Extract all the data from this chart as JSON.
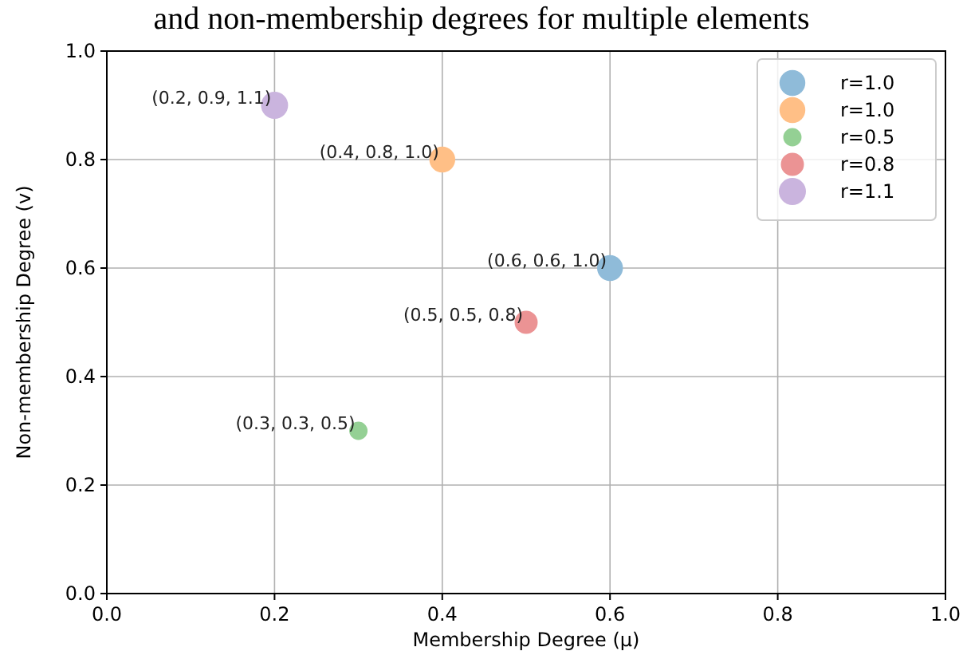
{
  "chart_data": {
    "type": "bubble",
    "title": "and non-membership degrees for multiple elements",
    "xlabel": "Membership Degree (μ)",
    "ylabel": "Non-membership Degree (v)",
    "xlim": [
      0,
      1
    ],
    "ylim": [
      0,
      1
    ],
    "xticks": [
      {
        "value": 0,
        "label": "0.0"
      },
      0.2,
      0.4,
      0.6,
      0.8,
      {
        "value": 1,
        "label": "1.0"
      }
    ],
    "yticks": [
      {
        "value": 0,
        "label": "0.0"
      },
      0.2,
      0.4,
      0.6,
      0.8,
      {
        "value": 1,
        "label": "1.0"
      }
    ],
    "grid": true,
    "legend": "top right",
    "series": [
      {
        "name": "r=1.0",
        "color": "#8fbbd9",
        "x": [
          0.6
        ],
        "values": [
          0.6
        ],
        "sizes": [
          0.909
        ]
      },
      {
        "name": "r=1.0",
        "color": "#ffbf86",
        "x": [
          0.4
        ],
        "values": [
          0.8
        ],
        "sizes": [
          0.909
        ]
      },
      {
        "name": "r=0.5",
        "color": "#94d094",
        "x": [
          0.3
        ],
        "values": [
          0.3
        ],
        "sizes": [
          0.455
        ]
      },
      {
        "name": "r=0.8",
        "color": "#eb9394",
        "x": [
          0.5
        ],
        "values": [
          0.5
        ],
        "sizes": [
          0.727
        ]
      },
      {
        "name": "r=1.1",
        "color": "#cab4de",
        "x": [
          0.2
        ],
        "values": [
          0.9
        ],
        "sizes": [
          1
        ]
      }
    ],
    "annotations": [
      {
        "text": "(0.6, 0.6, 1.0)",
        "x": 0.6,
        "y": 0.6
      },
      {
        "text": "(0.4, 0.8, 1.0)",
        "x": 0.4,
        "y": 0.8
      },
      {
        "text": "(0.3, 0.3, 0.5)",
        "x": 0.3,
        "y": 0.3
      },
      {
        "text": "(0.5, 0.5, 0.8)",
        "x": 0.5,
        "y": 0.5
      },
      {
        "text": "(0.2, 0.9, 1.1)",
        "x": 0.2,
        "y": 0.9
      }
    ]
  }
}
